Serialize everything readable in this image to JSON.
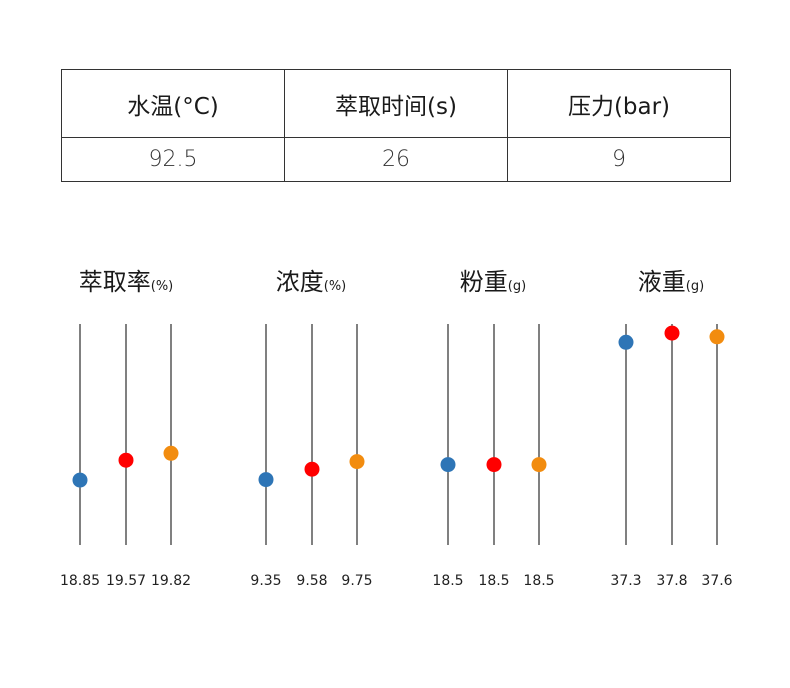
{
  "table": {
    "headers": [
      "水温(°C)",
      "萃取时间(s)",
      "压力(bar)"
    ],
    "values": [
      "92.5",
      "26",
      "9"
    ]
  },
  "colors": {
    "series": [
      "#2e75b6",
      "#ff0000",
      "#f28c0f"
    ],
    "axis_line": "#000000"
  },
  "chart_data": [
    {
      "type": "scatter",
      "title": "萃取率",
      "unit": "(%)",
      "categories": [
        "18.85",
        "19.57",
        "19.82"
      ],
      "values": [
        18.85,
        19.57,
        19.82
      ],
      "ylim": [
        16.5,
        24.5
      ]
    },
    {
      "type": "scatter",
      "title": "浓度",
      "unit": "(%)",
      "categories": [
        "9.35",
        "9.58",
        "9.75"
      ],
      "values": [
        9.35,
        9.58,
        9.75
      ],
      "ylim": [
        7.9,
        12.8
      ]
    },
    {
      "type": "scatter",
      "title": "粉重",
      "unit": "(g)",
      "categories": [
        "18.5",
        "18.5",
        "18.5"
      ],
      "values": [
        18.5,
        18.5,
        18.5
      ],
      "ylim": [
        14.9,
        24.8
      ]
    },
    {
      "type": "scatter",
      "title": "液重",
      "unit": "(g)",
      "categories": [
        "37.3",
        "37.8",
        "37.6"
      ],
      "values": [
        37.3,
        37.8,
        37.6
      ],
      "ylim": [
        26.2,
        38.3
      ]
    }
  ]
}
